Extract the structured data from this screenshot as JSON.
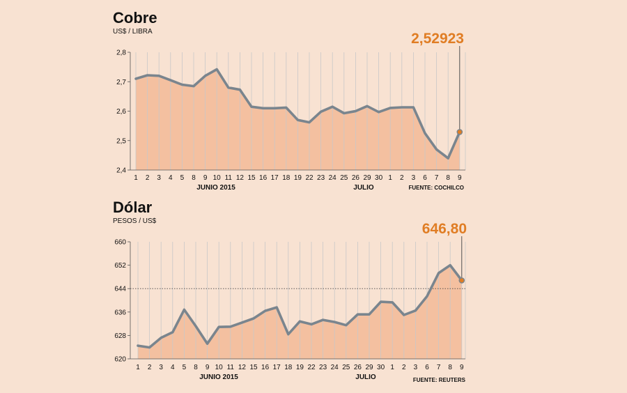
{
  "chart_data": [
    {
      "type": "area",
      "title": "Cobre",
      "unit_label": "US$ / LIBRA",
      "source": "FUENTE: COCHILCO",
      "highlight_label": "2,52923",
      "y_ticks": [
        "2,8",
        "2,7",
        "2,6",
        "2,5",
        "2,4"
      ],
      "y_tick_values": [
        2.8,
        2.7,
        2.6,
        2.5,
        2.4
      ],
      "ylim": [
        2.4,
        2.8
      ],
      "grid": true,
      "x_labels": [
        "1",
        "2",
        "3",
        "4",
        "5",
        "8",
        "9",
        "10",
        "11",
        "12",
        "15",
        "16",
        "17",
        "18",
        "19",
        "22",
        "23",
        "24",
        "25",
        "26",
        "29",
        "30",
        "1",
        "2",
        "3",
        "6",
        "7",
        "8",
        "9"
      ],
      "month_labels": [
        "JUNIO 2015",
        "JULIO"
      ],
      "values": [
        2.71,
        2.722,
        2.72,
        2.705,
        2.69,
        2.685,
        2.72,
        2.742,
        2.68,
        2.673,
        2.615,
        2.61,
        2.61,
        2.612,
        2.57,
        2.562,
        2.598,
        2.615,
        2.593,
        2.6,
        2.617,
        2.597,
        2.611,
        2.613,
        2.613,
        2.525,
        2.47,
        2.44,
        2.52923
      ],
      "colors": {
        "line": "#7a858e",
        "fill": "#f4c0a0",
        "highlight": "#e07d24",
        "grid": "#c8c8c8"
      }
    },
    {
      "type": "area",
      "title": "Dólar",
      "unit_label": "PESOS / US$",
      "source": "FUENTE: REUTERS",
      "highlight_label": "646,80",
      "y_ticks": [
        "660",
        "652",
        "644",
        "636",
        "628",
        "620"
      ],
      "y_tick_values": [
        660,
        652,
        644,
        636,
        628,
        620
      ],
      "ylim": [
        620,
        660
      ],
      "reference_line": 644,
      "grid": true,
      "x_labels": [
        "1",
        "2",
        "3",
        "4",
        "5",
        "8",
        "9",
        "10",
        "11",
        "12",
        "15",
        "16",
        "17",
        "18",
        "19",
        "22",
        "23",
        "24",
        "25",
        "26",
        "29",
        "30",
        "1",
        "2",
        "3",
        "6",
        "7",
        "8",
        "9"
      ],
      "month_labels": [
        "JUNIO 2015",
        "JULIO"
      ],
      "values": [
        624.5,
        623.9,
        627.2,
        629.1,
        636.8,
        631.2,
        625.2,
        630.9,
        631.0,
        632.4,
        633.8,
        636.4,
        637.6,
        628.4,
        632.8,
        631.8,
        633.3,
        632.6,
        631.5,
        635.2,
        635.2,
        639.5,
        639.3,
        635.0,
        636.5,
        641.4,
        649.3,
        652.0,
        646.8
      ],
      "colors": {
        "line": "#7a858e",
        "fill": "#f4c0a0",
        "highlight": "#e07d24",
        "grid": "#c8c8c8"
      }
    }
  ]
}
